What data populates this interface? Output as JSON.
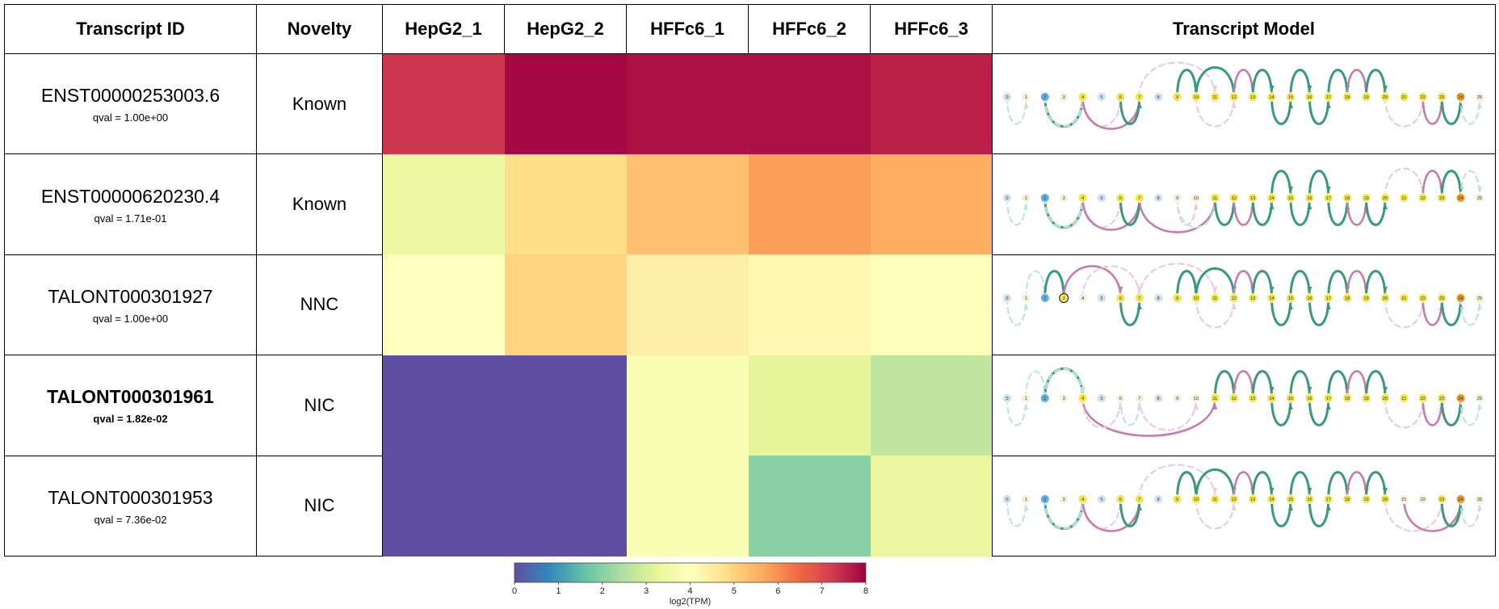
{
  "headers": [
    "Transcript ID",
    "Novelty",
    "HepG2_1",
    "HepG2_2",
    "HFFc6_1",
    "HFFc6_2",
    "HFFc6_3",
    "Transcript Model"
  ],
  "rows": [
    {
      "id": "ENST00000253003.6",
      "qval": "qval = 1.00e+00",
      "novelty": "Known",
      "bold": false
    },
    {
      "id": "ENST00000620230.4",
      "qval": "qval = 1.71e-01",
      "novelty": "Known",
      "bold": false
    },
    {
      "id": "TALONT000301927",
      "qval": "qval = 1.00e+00",
      "novelty": "NNC",
      "bold": false
    },
    {
      "id": "TALONT000301961",
      "qval": "qval = 1.82e-02",
      "novelty": "NIC",
      "bold": true
    },
    {
      "id": "TALONT000301953",
      "qval": "qval = 7.36e-02",
      "novelty": "NIC",
      "bold": false
    }
  ],
  "chart_data": {
    "type": "heatmap",
    "samples": [
      "HepG2_1",
      "HepG2_2",
      "HFFc6_1",
      "HFFc6_2",
      "HFFc6_3"
    ],
    "transcripts": [
      "ENST00000253003.6",
      "ENST00000620230.4",
      "TALONT000301927",
      "TALONT000301961",
      "TALONT000301953"
    ],
    "values": [
      [
        7.3,
        7.9,
        7.8,
        7.8,
        7.6
      ],
      [
        3.4,
        4.8,
        5.3,
        5.8,
        5.6
      ],
      [
        4.0,
        5.0,
        4.4,
        4.2,
        3.9
      ],
      [
        0.0,
        0.0,
        3.8,
        3.2,
        2.7
      ],
      [
        0.0,
        0.0,
        3.8,
        2.0,
        3.3
      ]
    ],
    "colorbar": {
      "label": "log2(TPM)",
      "min": 0,
      "max": 8,
      "ticks": [
        "0",
        "1",
        "2",
        "3",
        "4",
        "5",
        "6",
        "7",
        "8"
      ]
    }
  },
  "models": {
    "exons": [
      "0",
      "1",
      "2",
      "3",
      "4",
      "5",
      "6",
      "7",
      "8",
      "9",
      "10",
      "11",
      "12",
      "13",
      "14",
      "15",
      "16",
      "17",
      "18",
      "19",
      "20",
      "21",
      "22",
      "23",
      "24",
      "25"
    ],
    "colors": {
      "teal": "#3a9a78",
      "pink": "#c67bb0",
      "light_teal": "#bfe6dd",
      "light_pink": "#eacbe0",
      "yellow": "#f2e64a",
      "blue": "#62aee6",
      "orange": "#e79a26",
      "pale": "#f4f0d6",
      "pale_blue": "#cfe0ee"
    },
    "arcs": [
      [
        [
          0,
          1,
          "lt"
        ],
        [
          2,
          4,
          "t"
        ],
        [
          2,
          4,
          "lt"
        ],
        [
          4,
          6,
          "lp"
        ],
        [
          4,
          7,
          "p"
        ],
        [
          6,
          7,
          "t"
        ],
        [
          7,
          11,
          "lp"
        ],
        [
          9,
          10,
          "p"
        ],
        [
          9,
          10,
          "t"
        ],
        [
          10,
          12,
          "lp"
        ],
        [
          10,
          12,
          "t"
        ],
        [
          12,
          13,
          "p"
        ],
        [
          13,
          14,
          "t"
        ],
        [
          14,
          15,
          "t"
        ],
        [
          15,
          16,
          "t"
        ],
        [
          16,
          17,
          "t"
        ],
        [
          17,
          18,
          "t"
        ],
        [
          18,
          19,
          "p"
        ],
        [
          19,
          20,
          "t"
        ],
        [
          20,
          22,
          "lp"
        ],
        [
          22,
          23,
          "p"
        ],
        [
          23,
          24,
          "t"
        ],
        [
          24,
          25,
          "lt"
        ]
      ],
      [
        [
          0,
          1,
          "lt"
        ],
        [
          2,
          4,
          "t"
        ],
        [
          2,
          4,
          "lt"
        ],
        [
          4,
          6,
          "lp"
        ],
        [
          4,
          7,
          "p"
        ],
        [
          6,
          7,
          "t"
        ],
        [
          7,
          11,
          "p"
        ],
        [
          9,
          10,
          "lp"
        ],
        [
          9,
          11,
          "lt"
        ],
        [
          11,
          12,
          "t"
        ],
        [
          12,
          13,
          "p"
        ],
        [
          13,
          14,
          "t"
        ],
        [
          14,
          15,
          "t"
        ],
        [
          15,
          16,
          "t"
        ],
        [
          16,
          17,
          "t"
        ],
        [
          17,
          18,
          "t"
        ],
        [
          18,
          19,
          "p"
        ],
        [
          19,
          20,
          "t"
        ],
        [
          20,
          22,
          "lp"
        ],
        [
          22,
          23,
          "p"
        ],
        [
          23,
          24,
          "t"
        ],
        [
          24,
          25,
          "lt"
        ]
      ],
      [
        [
          0,
          1,
          "lt"
        ],
        [
          1,
          2,
          "lt"
        ],
        [
          2,
          3,
          "t"
        ],
        [
          3,
          6,
          "p"
        ],
        [
          4,
          7,
          "lp"
        ],
        [
          6,
          7,
          "t"
        ],
        [
          7,
          11,
          "lp"
        ],
        [
          9,
          10,
          "p"
        ],
        [
          9,
          10,
          "t"
        ],
        [
          10,
          12,
          "lp"
        ],
        [
          10,
          12,
          "t"
        ],
        [
          12,
          13,
          "p"
        ],
        [
          13,
          14,
          "t"
        ],
        [
          14,
          15,
          "t"
        ],
        [
          15,
          16,
          "t"
        ],
        [
          16,
          17,
          "t"
        ],
        [
          17,
          18,
          "t"
        ],
        [
          18,
          19,
          "p"
        ],
        [
          19,
          20,
          "t"
        ],
        [
          20,
          22,
          "lp"
        ],
        [
          22,
          23,
          "p"
        ],
        [
          23,
          24,
          "t"
        ],
        [
          24,
          25,
          "lt"
        ]
      ],
      [
        [
          0,
          1,
          "lt"
        ],
        [
          1,
          2,
          "lt"
        ],
        [
          2,
          4,
          "t"
        ],
        [
          2,
          4,
          "lt"
        ],
        [
          4,
          11,
          "p"
        ],
        [
          4,
          6,
          "lp"
        ],
        [
          6,
          7,
          "lt"
        ],
        [
          7,
          10,
          "lp"
        ],
        [
          11,
          12,
          "t"
        ],
        [
          12,
          13,
          "p"
        ],
        [
          13,
          14,
          "t"
        ],
        [
          14,
          15,
          "t"
        ],
        [
          15,
          16,
          "t"
        ],
        [
          16,
          17,
          "t"
        ],
        [
          17,
          18,
          "t"
        ],
        [
          18,
          19,
          "p"
        ],
        [
          19,
          20,
          "t"
        ],
        [
          20,
          22,
          "lp"
        ],
        [
          22,
          23,
          "p"
        ],
        [
          23,
          24,
          "t"
        ],
        [
          24,
          25,
          "lt"
        ]
      ],
      [
        [
          0,
          1,
          "lt"
        ],
        [
          2,
          4,
          "t"
        ],
        [
          2,
          4,
          "lt"
        ],
        [
          4,
          6,
          "lp"
        ],
        [
          4,
          7,
          "p"
        ],
        [
          6,
          7,
          "t"
        ],
        [
          7,
          11,
          "lp"
        ],
        [
          9,
          10,
          "p"
        ],
        [
          9,
          10,
          "t"
        ],
        [
          10,
          12,
          "lp"
        ],
        [
          10,
          12,
          "t"
        ],
        [
          12,
          13,
          "p"
        ],
        [
          13,
          14,
          "t"
        ],
        [
          14,
          15,
          "t"
        ],
        [
          15,
          16,
          "t"
        ],
        [
          16,
          17,
          "t"
        ],
        [
          17,
          18,
          "t"
        ],
        [
          18,
          19,
          "p"
        ],
        [
          19,
          20,
          "t"
        ],
        [
          20,
          23,
          "lp"
        ],
        [
          21,
          24,
          "p"
        ],
        [
          23,
          24,
          "t"
        ],
        [
          24,
          25,
          "lt"
        ]
      ]
    ],
    "fills": [
      [
        "pale_blue",
        "pale",
        "blue",
        "pale",
        "yellow",
        "pale_blue",
        "yellow",
        "yellow",
        "pale_blue",
        "yellow",
        "yellow",
        "yellow",
        "yellow",
        "yellow",
        "yellow",
        "yellow",
        "yellow",
        "yellow",
        "yellow",
        "yellow",
        "yellow",
        "yellow",
        "yellow",
        "yellow",
        "orange",
        "pale"
      ],
      [
        "pale_blue",
        "pale",
        "blue",
        "pale",
        "yellow",
        "pale_blue",
        "yellow",
        "yellow",
        "pale_blue",
        "pale",
        "pale",
        "yellow",
        "yellow",
        "yellow",
        "yellow",
        "yellow",
        "yellow",
        "yellow",
        "yellow",
        "yellow",
        "yellow",
        "yellow",
        "yellow",
        "yellow",
        "orange",
        "pale"
      ],
      [
        "pale_blue",
        "pale",
        "blue",
        "yellow",
        "pale",
        "pale_blue",
        "yellow",
        "yellow",
        "pale_blue",
        "yellow",
        "yellow",
        "yellow",
        "yellow",
        "yellow",
        "yellow",
        "yellow",
        "yellow",
        "yellow",
        "yellow",
        "yellow",
        "yellow",
        "yellow",
        "yellow",
        "yellow",
        "orange",
        "pale"
      ],
      [
        "pale_blue",
        "pale",
        "blue",
        "pale",
        "yellow",
        "pale_blue",
        "pale",
        "pale",
        "pale_blue",
        "pale",
        "pale",
        "yellow",
        "yellow",
        "yellow",
        "yellow",
        "yellow",
        "yellow",
        "yellow",
        "yellow",
        "yellow",
        "yellow",
        "yellow",
        "yellow",
        "yellow",
        "orange",
        "pale"
      ],
      [
        "pale_blue",
        "pale",
        "blue",
        "pale",
        "yellow",
        "pale_blue",
        "yellow",
        "yellow",
        "pale_blue",
        "yellow",
        "yellow",
        "yellow",
        "yellow",
        "yellow",
        "yellow",
        "yellow",
        "yellow",
        "yellow",
        "yellow",
        "yellow",
        "yellow",
        "pale",
        "pale",
        "yellow",
        "orange",
        "pale"
      ]
    ]
  }
}
